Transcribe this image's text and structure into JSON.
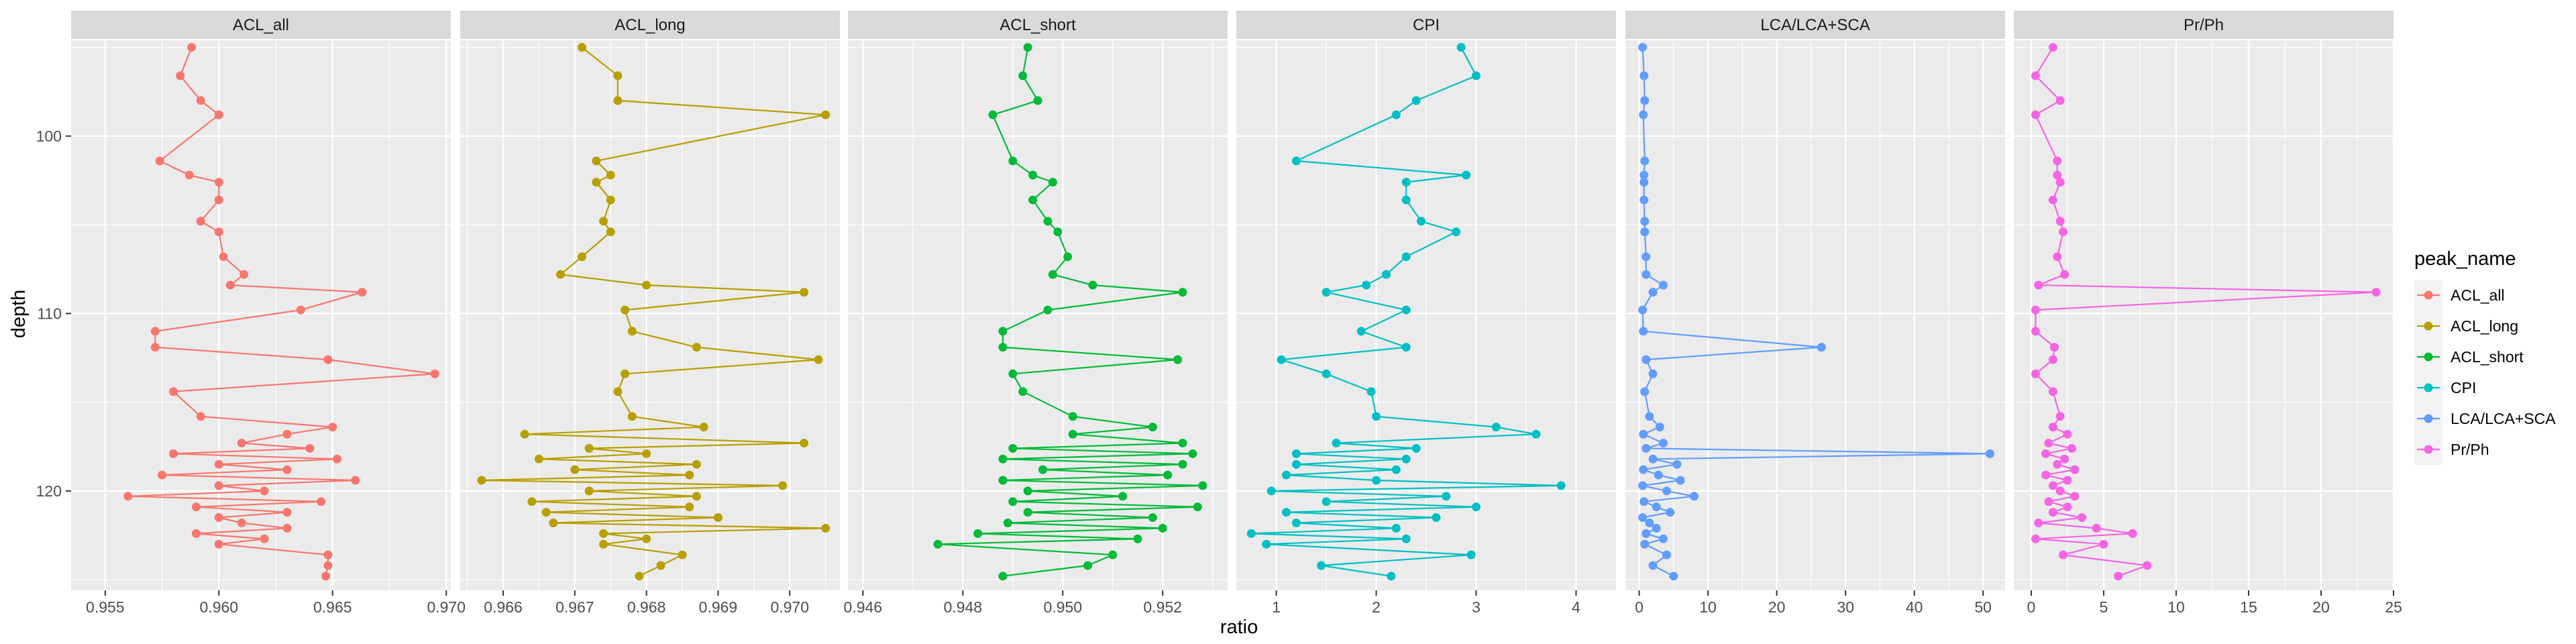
{
  "chart_data": {
    "type": "line",
    "xlabel": "ratio",
    "ylabel": "depth",
    "y_reversed": true,
    "ylim": [
      125.6,
      94.6
    ],
    "y_ticks": [
      100,
      110,
      120
    ],
    "grid": true,
    "legend_position": "right",
    "legend_title": "peak_name",
    "depths": [
      95.0,
      96.6,
      98.0,
      98.8,
      101.4,
      102.2,
      102.6,
      103.6,
      104.8,
      105.4,
      106.8,
      107.8,
      108.4,
      108.8,
      109.8,
      111.0,
      111.9,
      112.6,
      113.4,
      114.4,
      115.8,
      116.4,
      116.8,
      117.3,
      117.6,
      117.9,
      118.2,
      118.5,
      118.8,
      119.1,
      119.4,
      119.7,
      120.0,
      120.3,
      120.6,
      120.9,
      121.2,
      121.5,
      121.8,
      122.1,
      122.4,
      122.7,
      123.0,
      123.6,
      124.2,
      124.8
    ],
    "panels": [
      {
        "name": "ACL_all",
        "color": "#F8766D",
        "xlim": [
          0.9535,
          0.9702
        ],
        "x_ticks": [
          "0.955",
          "0.960",
          "0.965",
          "0.970"
        ],
        "x_tick_values": [
          0.955,
          0.96,
          0.965,
          0.97
        ],
        "values": [
          0.9588,
          0.9583,
          0.9592,
          0.96,
          0.9574,
          0.9587,
          0.96,
          0.96,
          0.9592,
          0.96,
          0.9602,
          0.9611,
          0.9605,
          0.9663,
          0.9636,
          0.9572,
          0.9572,
          0.9648,
          0.9695,
          0.958,
          0.9592,
          0.965,
          0.963,
          0.961,
          0.964,
          0.958,
          0.9652,
          0.96,
          0.963,
          0.9575,
          0.966,
          0.96,
          0.962,
          0.956,
          0.9645,
          0.959,
          0.963,
          0.96,
          0.961,
          0.963,
          0.959,
          0.962,
          0.96,
          0.9648,
          0.9648,
          0.9647
        ]
      },
      {
        "name": "ACL_long",
        "color": "#B79F00",
        "xlim": [
          0.9654,
          0.9707
        ],
        "x_ticks": [
          "0.966",
          "0.967",
          "0.968",
          "0.969",
          "0.970"
        ],
        "x_tick_values": [
          0.966,
          0.967,
          0.968,
          0.969,
          0.97
        ],
        "values": [
          0.9671,
          0.9676,
          0.9676,
          0.9705,
          0.9673,
          0.9675,
          0.9673,
          0.9675,
          0.9674,
          0.9675,
          0.9671,
          0.9668,
          0.968,
          0.9702,
          0.9677,
          0.9678,
          0.9687,
          0.9704,
          0.9677,
          0.9676,
          0.9678,
          0.9688,
          0.9663,
          0.9702,
          0.9672,
          0.968,
          0.9665,
          0.9687,
          0.967,
          0.9686,
          0.9657,
          0.9699,
          0.9672,
          0.9687,
          0.9664,
          0.9686,
          0.9666,
          0.969,
          0.9667,
          0.9705,
          0.9674,
          0.968,
          0.9674,
          0.9685,
          0.9682,
          0.9679
        ]
      },
      {
        "name": "ACL_short",
        "color": "#00BA38",
        "xlim": [
          0.9457,
          0.9533
        ],
        "x_ticks": [
          "0.946",
          "0.948",
          "0.950",
          "0.952"
        ],
        "x_tick_values": [
          0.946,
          0.948,
          0.95,
          0.952
        ],
        "values": [
          0.9493,
          0.9492,
          0.9495,
          0.9486,
          0.949,
          0.9494,
          0.9498,
          0.9494,
          0.9497,
          0.9499,
          0.9501,
          0.9498,
          0.9506,
          0.9524,
          0.9497,
          0.9488,
          0.9488,
          0.9523,
          0.949,
          0.9492,
          0.9502,
          0.9518,
          0.9502,
          0.9524,
          0.949,
          0.9526,
          0.9488,
          0.9524,
          0.9496,
          0.9521,
          0.9488,
          0.9528,
          0.9493,
          0.9512,
          0.949,
          0.9527,
          0.9493,
          0.9518,
          0.9489,
          0.952,
          0.9483,
          0.9515,
          0.9475,
          0.951,
          0.9505,
          0.9488
        ]
      },
      {
        "name": "CPI",
        "color": "#00BFC4",
        "xlim": [
          0.6,
          4.4
        ],
        "x_ticks": [
          "1",
          "2",
          "3",
          "4"
        ],
        "x_tick_values": [
          1,
          2,
          3,
          4
        ],
        "values": [
          2.85,
          3.0,
          2.4,
          2.2,
          1.2,
          2.9,
          2.3,
          2.3,
          2.45,
          2.8,
          2.3,
          2.1,
          1.9,
          1.5,
          2.3,
          1.85,
          2.3,
          1.05,
          1.5,
          1.95,
          2.0,
          3.2,
          3.6,
          1.6,
          2.4,
          1.2,
          2.3,
          1.2,
          2.2,
          1.1,
          2.0,
          3.85,
          0.95,
          2.7,
          1.5,
          3.0,
          1.1,
          2.6,
          1.2,
          2.2,
          0.75,
          2.3,
          0.9,
          2.95,
          1.45,
          2.15
        ]
      },
      {
        "name": "LCA/LCA+SCA",
        "color": "#619CFF",
        "xlim": [
          -2.0,
          53.2
        ],
        "x_ticks": [
          "0",
          "10",
          "20",
          "30",
          "40",
          "50"
        ],
        "x_tick_values": [
          0,
          10,
          20,
          30,
          40,
          50
        ],
        "values": [
          0.5,
          0.7,
          0.8,
          0.6,
          0.8,
          0.7,
          0.7,
          0.7,
          0.8,
          0.8,
          1.0,
          1.0,
          3.5,
          2.0,
          0.5,
          0.6,
          26.5,
          1.0,
          2.0,
          0.8,
          1.5,
          3.0,
          0.6,
          3.5,
          1.0,
          51.0,
          2.0,
          5.5,
          0.6,
          2.8,
          6.0,
          0.5,
          4.0,
          8.0,
          0.7,
          2.5,
          4.5,
          0.5,
          1.5,
          2.5,
          1.0,
          3.5,
          0.8,
          4.0,
          2.0,
          5.0
        ]
      },
      {
        "name": "Pr/Ph",
        "color": "#F564E3",
        "xlim": [
          -1.2,
          25.0
        ],
        "x_ticks": [
          "0",
          "5",
          "10",
          "15",
          "20",
          "25"
        ],
        "x_tick_values": [
          0,
          5,
          10,
          15,
          20,
          25
        ],
        "values": [
          1.5,
          0.3,
          2.0,
          0.3,
          1.8,
          1.8,
          2.0,
          1.5,
          2.0,
          2.2,
          1.8,
          2.3,
          0.5,
          23.8,
          0.3,
          0.3,
          1.6,
          1.5,
          0.3,
          1.5,
          2.0,
          1.5,
          2.5,
          1.2,
          2.8,
          1.0,
          2.3,
          1.8,
          3.0,
          1.0,
          2.5,
          1.5,
          2.0,
          3.0,
          1.2,
          2.5,
          1.5,
          3.5,
          0.5,
          4.5,
          7.0,
          0.3,
          5.0,
          2.2,
          8.0,
          6.0
        ]
      }
    ]
  }
}
